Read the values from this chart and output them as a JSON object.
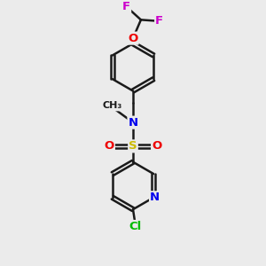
{
  "bg_color": "#ebebeb",
  "bond_color": "#1a1a1a",
  "bond_width": 1.8,
  "atom_colors": {
    "C": "#1a1a1a",
    "N": "#0000ee",
    "O": "#ee0000",
    "S": "#ccbb00",
    "F": "#cc00cc",
    "Cl": "#00bb00"
  },
  "font_size": 9.5,
  "figsize": [
    3.0,
    3.0
  ],
  "dpi": 100
}
